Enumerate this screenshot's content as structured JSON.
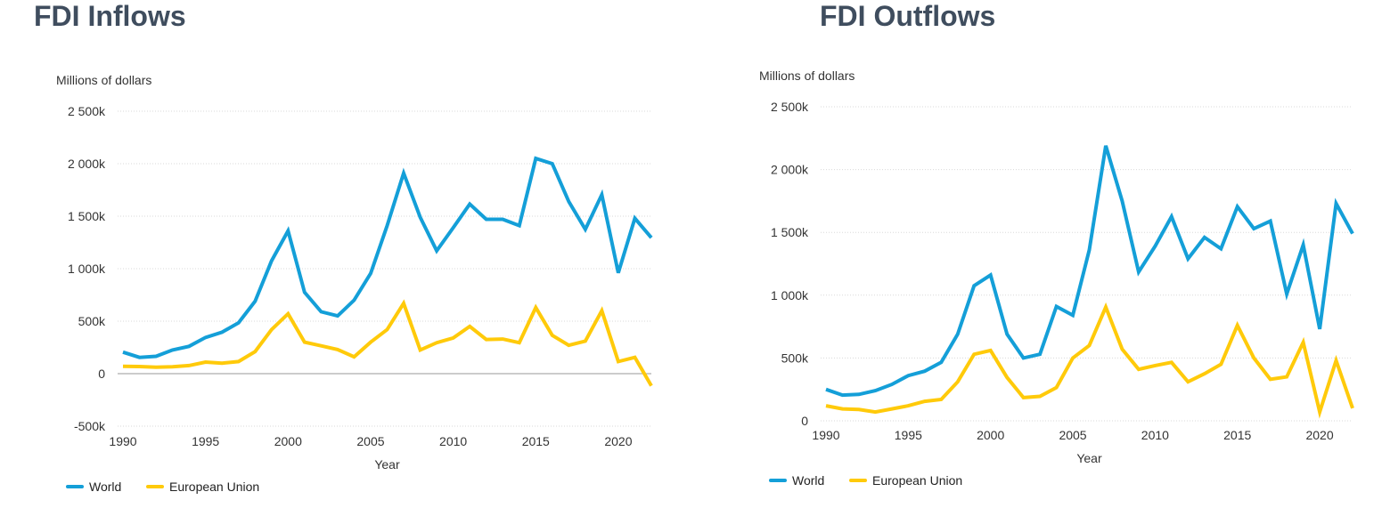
{
  "titles": {
    "left": "FDI Inflows",
    "right": "FDI Outflows"
  },
  "colors": {
    "world": "#149fd8",
    "eu": "#ffca0a"
  },
  "chart_data": [
    {
      "type": "line",
      "title": "FDI Inflows",
      "ylabel": "Millions of dollars",
      "xlabel": "Year",
      "ylim": [
        -500000,
        2500000
      ],
      "xlim": [
        1990,
        2022
      ],
      "yticks": [
        2500000,
        2000000,
        1500000,
        1000000,
        500000,
        0,
        -500000
      ],
      "yticklabels": [
        "2 500k",
        "2 000k",
        "1 500k",
        "1 000k",
        "500k",
        "0",
        "-500k"
      ],
      "xticks": [
        1990,
        1995,
        2000,
        2005,
        2010,
        2015,
        2020
      ],
      "xticklabels": [
        "1990",
        "1995",
        "2000",
        "2005",
        "2010",
        "2015",
        "2020"
      ],
      "legend": [
        "World",
        "European Union"
      ],
      "legend_position": "bottom-left",
      "x": [
        1990,
        1991,
        1992,
        1993,
        1994,
        1995,
        1996,
        1997,
        1998,
        1999,
        2000,
        2001,
        2002,
        2003,
        2004,
        2005,
        2006,
        2007,
        2008,
        2009,
        2010,
        2011,
        2012,
        2013,
        2014,
        2015,
        2016,
        2017,
        2018,
        2019,
        2020,
        2021,
        2022
      ],
      "series": [
        {
          "name": "World",
          "color": "#149fd8",
          "values": [
            205000,
            155000,
            165000,
            225000,
            260000,
            345000,
            395000,
            485000,
            690000,
            1075000,
            1360000,
            775000,
            590000,
            550000,
            700000,
            955000,
            1410000,
            1910000,
            1490000,
            1170000,
            1390000,
            1615000,
            1470000,
            1470000,
            1410000,
            2050000,
            2000000,
            1640000,
            1375000,
            1705000,
            960000,
            1480000,
            1295000
          ]
        },
        {
          "name": "European Union",
          "color": "#ffca0a",
          "values": [
            70000,
            68000,
            62000,
            65000,
            77000,
            110000,
            100000,
            115000,
            210000,
            420000,
            570000,
            300000,
            265000,
            230000,
            160000,
            300000,
            420000,
            670000,
            225000,
            295000,
            340000,
            450000,
            325000,
            330000,
            295000,
            630000,
            365000,
            270000,
            310000,
            600000,
            115000,
            155000,
            -115000
          ]
        }
      ]
    },
    {
      "type": "line",
      "title": "FDI Outflows",
      "ylabel": "Millions of dollars",
      "xlabel": "Year",
      "ylim": [
        0,
        2500000
      ],
      "xlim": [
        1990,
        2022
      ],
      "yticks": [
        2500000,
        2000000,
        1500000,
        1000000,
        500000,
        0
      ],
      "yticklabels": [
        "2 500k",
        "2 000k",
        "1 500k",
        "1 000k",
        "500k",
        "0"
      ],
      "xticks": [
        1990,
        1995,
        2000,
        2005,
        2010,
        2015,
        2020
      ],
      "xticklabels": [
        "1990",
        "1995",
        "2000",
        "2005",
        "2010",
        "2015",
        "2020"
      ],
      "legend": [
        "World",
        "European Union"
      ],
      "legend_position": "bottom-left",
      "x": [
        1990,
        1991,
        1992,
        1993,
        1994,
        1995,
        1996,
        1997,
        1998,
        1999,
        2000,
        2001,
        2002,
        2003,
        2004,
        2005,
        2006,
        2007,
        2008,
        2009,
        2010,
        2011,
        2012,
        2013,
        2014,
        2015,
        2016,
        2017,
        2018,
        2019,
        2020,
        2021,
        2022
      ],
      "series": [
        {
          "name": "World",
          "color": "#149fd8",
          "values": [
            250000,
            205000,
            210000,
            240000,
            290000,
            360000,
            395000,
            465000,
            690000,
            1075000,
            1160000,
            690000,
            500000,
            530000,
            910000,
            840000,
            1360000,
            2190000,
            1750000,
            1185000,
            1390000,
            1625000,
            1290000,
            1460000,
            1370000,
            1705000,
            1530000,
            1590000,
            1010000,
            1400000,
            730000,
            1730000,
            1490000
          ]
        },
        {
          "name": "European Union",
          "color": "#ffca0a",
          "values": [
            120000,
            95000,
            90000,
            70000,
            95000,
            120000,
            155000,
            170000,
            310000,
            530000,
            560000,
            345000,
            185000,
            195000,
            265000,
            500000,
            600000,
            905000,
            570000,
            410000,
            440000,
            465000,
            310000,
            375000,
            450000,
            760000,
            500000,
            330000,
            350000,
            625000,
            70000,
            480000,
            100000
          ]
        }
      ]
    }
  ]
}
